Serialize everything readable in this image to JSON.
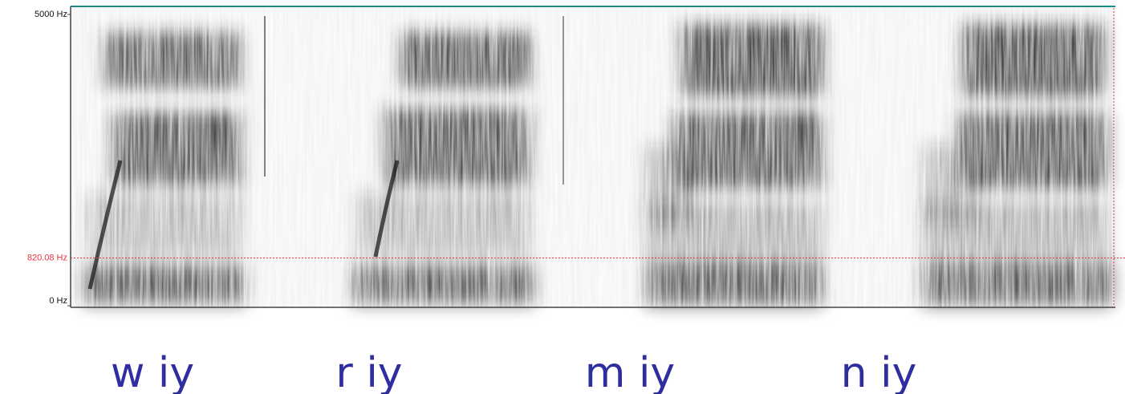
{
  "chart_data": {
    "type": "spectrogram",
    "ylim": [
      0,
      5000
    ],
    "yticks": [
      {
        "value": 0,
        "label": "0 Hz"
      },
      {
        "value": 5000,
        "label": "5000 Hz"
      }
    ],
    "cursor": {
      "value": 820.08,
      "label": "820.08 Hz",
      "color": "#e8333a"
    },
    "categories": [
      "w iy",
      "r iy",
      "m iy",
      "n iy"
    ]
  }
}
